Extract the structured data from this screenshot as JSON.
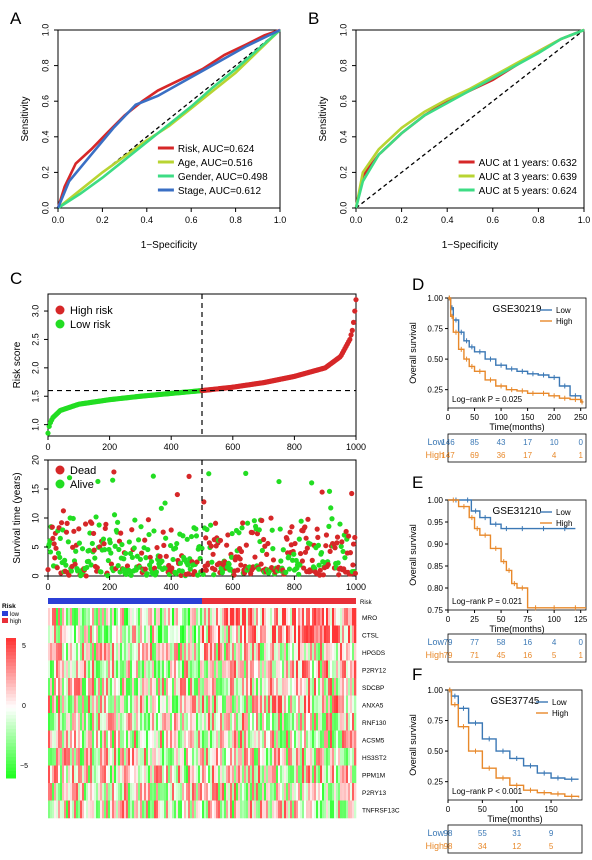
{
  "panels": {
    "A": "A",
    "B": "B",
    "C": "C",
    "D": "D",
    "E": "E",
    "F": "F"
  },
  "colors": {
    "red": "#d62728",
    "lime": "#b8d432",
    "green": "#3ddc84",
    "blue": "#3a6fc4",
    "brightgreen": "#22dd22",
    "orange": "#e8892b",
    "km_blue": "#3b78b5",
    "heat_red": "#e8303a",
    "heat_green": "#2ad430"
  },
  "chart_data": [
    {
      "id": "A",
      "type": "line",
      "xlabel": "1−Specificity",
      "ylabel": "Sensitivity",
      "xlim": [
        0,
        1
      ],
      "ylim": [
        0,
        1
      ],
      "xticks": [
        "0.0",
        "0.2",
        "0.4",
        "0.6",
        "0.8",
        "1.0"
      ],
      "yticks": [
        "0.0",
        "0.2",
        "0.4",
        "0.6",
        "0.8",
        "1.0"
      ],
      "legend_position": "bottom-right",
      "series": [
        {
          "name": "Risk, AUC=0.624",
          "color": "#d62728",
          "x": [
            0,
            0.03,
            0.08,
            0.15,
            0.22,
            0.3,
            0.38,
            0.45,
            0.55,
            0.65,
            0.75,
            0.85,
            0.93,
            1.0
          ],
          "y": [
            0,
            0.12,
            0.25,
            0.33,
            0.42,
            0.52,
            0.6,
            0.66,
            0.72,
            0.78,
            0.86,
            0.92,
            0.97,
            1.0
          ]
        },
        {
          "name": "Age, AUC=0.516",
          "color": "#b8d432",
          "x": [
            0,
            0.1,
            0.2,
            0.3,
            0.4,
            0.5,
            0.6,
            0.7,
            0.8,
            0.9,
            1.0
          ],
          "y": [
            0,
            0.1,
            0.2,
            0.29,
            0.38,
            0.46,
            0.56,
            0.66,
            0.76,
            0.88,
            1.0
          ]
        },
        {
          "name": "Gender, AUC=0.498",
          "color": "#3ddc84",
          "x": [
            0,
            0.1,
            0.2,
            0.3,
            0.4,
            0.5,
            0.6,
            0.7,
            0.8,
            0.9,
            1.0
          ],
          "y": [
            0,
            0.08,
            0.17,
            0.27,
            0.37,
            0.47,
            0.57,
            0.68,
            0.78,
            0.89,
            1.0
          ]
        },
        {
          "name": "Stage, AUC=0.612",
          "color": "#3a6fc4",
          "x": [
            0,
            0.05,
            0.15,
            0.25,
            0.35,
            0.45,
            0.55,
            0.65,
            0.75,
            0.85,
            1.0
          ],
          "y": [
            0,
            0.15,
            0.3,
            0.45,
            0.58,
            0.63,
            0.7,
            0.77,
            0.84,
            0.91,
            1.0
          ]
        }
      ]
    },
    {
      "id": "B",
      "type": "line",
      "xlabel": "1−Specificity",
      "ylabel": "Sensitivity",
      "xlim": [
        0,
        1
      ],
      "ylim": [
        0,
        1
      ],
      "xticks": [
        "0.0",
        "0.2",
        "0.4",
        "0.6",
        "0.8",
        "1.0"
      ],
      "yticks": [
        "0.0",
        "0.2",
        "0.4",
        "0.6",
        "0.8",
        "1.0"
      ],
      "legend_position": "bottom-right",
      "series": [
        {
          "name": "AUC at 1 years: 0.632",
          "color": "#d62728",
          "x": [
            0,
            0.03,
            0.1,
            0.2,
            0.3,
            0.4,
            0.5,
            0.6,
            0.7,
            0.8,
            0.9,
            1.0
          ],
          "y": [
            0,
            0.18,
            0.3,
            0.42,
            0.52,
            0.6,
            0.66,
            0.72,
            0.8,
            0.88,
            0.95,
            1.0
          ]
        },
        {
          "name": "AUC at 3 years: 0.639",
          "color": "#b8d432",
          "x": [
            0,
            0.03,
            0.1,
            0.2,
            0.3,
            0.4,
            0.5,
            0.6,
            0.7,
            0.8,
            0.9,
            1.0
          ],
          "y": [
            0,
            0.2,
            0.33,
            0.45,
            0.54,
            0.61,
            0.67,
            0.74,
            0.81,
            0.88,
            0.95,
            1.0
          ]
        },
        {
          "name": "AUC at 5 years: 0.624",
          "color": "#3ddc84",
          "x": [
            0,
            0.03,
            0.1,
            0.2,
            0.3,
            0.4,
            0.5,
            0.6,
            0.7,
            0.8,
            0.9,
            1.0
          ],
          "y": [
            0,
            0.15,
            0.3,
            0.42,
            0.52,
            0.59,
            0.66,
            0.73,
            0.8,
            0.87,
            0.95,
            1.0
          ]
        }
      ]
    },
    {
      "id": "C1",
      "type": "scatter",
      "ylabel": "Risk score",
      "xlim": [
        0,
        1000
      ],
      "ylim": [
        0.8,
        3.3
      ],
      "xticks": [
        "0",
        "200",
        "400",
        "600",
        "800",
        "1000"
      ],
      "yticks": [
        "1.0",
        "1.5",
        "2.0",
        "2.5",
        "3.0"
      ],
      "cutoff_x": 500,
      "cutoff_y": 1.6,
      "legend_position": "top-left",
      "series": [
        {
          "name": "High risk",
          "color": "#d62728"
        },
        {
          "name": "Low risk",
          "color": "#22dd22"
        }
      ],
      "curve": {
        "x": [
          0,
          5,
          15,
          40,
          100,
          200,
          300,
          400,
          480,
          500,
          600,
          700,
          800,
          900,
          950,
          980,
          990,
          1000
        ],
        "y": [
          0.85,
          1.0,
          1.12,
          1.25,
          1.36,
          1.44,
          1.5,
          1.55,
          1.59,
          1.6,
          1.66,
          1.74,
          1.85,
          2.0,
          2.2,
          2.5,
          2.7,
          3.2
        ]
      }
    },
    {
      "id": "C2",
      "type": "scatter",
      "ylabel": "Survival time (years)",
      "xlim": [
        0,
        1000
      ],
      "ylim": [
        0,
        20
      ],
      "xticks": [
        "0",
        "200",
        "400",
        "600",
        "800",
        "1000"
      ],
      "yticks": [
        "0",
        "5",
        "10",
        "15",
        "20"
      ],
      "cutoff_x": 500,
      "legend_position": "top-left",
      "series": [
        {
          "name": "Dead",
          "color": "#d62728"
        },
        {
          "name": "Alive",
          "color": "#22dd22"
        }
      ]
    },
    {
      "id": "C3",
      "type": "heatmap",
      "legend_title": "Risk",
      "legend_entries": [
        "low",
        "high"
      ],
      "annotation_label": "Risk",
      "color_scale_ticks": [
        "5",
        "0",
        "−5"
      ],
      "genes": [
        "MRO",
        "CTSL",
        "HPGDS",
        "P2RY12",
        "SDCBP",
        "ANXA5",
        "RNF130",
        "ACSM5",
        "HS3ST2",
        "PPM1M",
        "P2RY13",
        "TNFRSF13C"
      ]
    },
    {
      "id": "D",
      "type": "line",
      "title": "GSE30219",
      "ylabel": "Overall survival",
      "xlabel": "Time(months)",
      "xlim": [
        0,
        260
      ],
      "ylim": [
        0.1,
        1.0
      ],
      "xticks": [
        "0",
        "50",
        "100",
        "150",
        "200",
        "250"
      ],
      "yticks": [
        "0.25",
        "0.50",
        "0.75",
        "1.00"
      ],
      "annotation": "Log−rank P = 0.025",
      "legend_position": "top-right",
      "series": [
        {
          "name": "Low",
          "color": "#3b78b5",
          "x": [
            0,
            5,
            10,
            20,
            30,
            40,
            50,
            70,
            90,
            110,
            130,
            150,
            170,
            190,
            210,
            230,
            250,
            255
          ],
          "y": [
            1.0,
            0.92,
            0.82,
            0.72,
            0.65,
            0.6,
            0.56,
            0.5,
            0.45,
            0.42,
            0.4,
            0.38,
            0.37,
            0.35,
            0.28,
            0.2,
            0.15,
            0.15
          ]
        },
        {
          "name": "High",
          "color": "#e8892b",
          "x": [
            0,
            5,
            10,
            20,
            30,
            40,
            50,
            70,
            90,
            110,
            130,
            150,
            170,
            190,
            210,
            230,
            250,
            255
          ],
          "y": [
            1.0,
            0.85,
            0.72,
            0.58,
            0.5,
            0.44,
            0.4,
            0.33,
            0.28,
            0.25,
            0.24,
            0.22,
            0.22,
            0.2,
            0.18,
            0.17,
            0.15,
            0.15
          ]
        }
      ],
      "risk_table": {
        "times": [
          "0",
          "50",
          "100",
          "150",
          "200",
          "250"
        ],
        "rows": [
          {
            "name": "Low",
            "values": [
              "146",
              "85",
              "43",
              "17",
              "10",
              "0"
            ]
          },
          {
            "name": "High",
            "values": [
              "147",
              "69",
              "36",
              "17",
              "4",
              "1"
            ]
          }
        ]
      }
    },
    {
      "id": "E",
      "type": "line",
      "title": "GSE31210",
      "ylabel": "Overall survival",
      "xlabel": "Time(months)",
      "xlim": [
        0,
        130
      ],
      "ylim": [
        0.75,
        1.0
      ],
      "xticks": [
        "0",
        "25",
        "50",
        "75",
        "100",
        "125"
      ],
      "yticks": [
        "0.75",
        "0.80",
        "0.85",
        "0.90",
        "0.95",
        "1.00"
      ],
      "annotation": "Log−rank P = 0.021",
      "legend_position": "top-right",
      "series": [
        {
          "name": "Low",
          "color": "#3b78b5",
          "x": [
            0,
            15,
            22,
            30,
            40,
            50,
            60,
            80,
            100,
            120
          ],
          "y": [
            1.0,
            1.0,
            0.975,
            0.96,
            0.945,
            0.935,
            0.935,
            0.935,
            0.935,
            0.935
          ]
        },
        {
          "name": "High",
          "color": "#e8892b",
          "x": [
            0,
            10,
            20,
            25,
            30,
            40,
            50,
            55,
            60,
            65,
            75,
            90,
            110,
            130
          ],
          "y": [
            1.0,
            0.985,
            0.96,
            0.935,
            0.92,
            0.89,
            0.86,
            0.84,
            0.81,
            0.8,
            0.755,
            0.755,
            0.755,
            0.755
          ]
        }
      ],
      "risk_table": {
        "times": [
          "0",
          "25",
          "50",
          "75",
          "100",
          "125"
        ],
        "rows": [
          {
            "name": "Low",
            "values": [
              "79",
              "77",
              "58",
              "16",
              "4",
              "0"
            ]
          },
          {
            "name": "High",
            "values": [
              "79",
              "71",
              "45",
              "16",
              "5",
              "1"
            ]
          }
        ]
      }
    },
    {
      "id": "F",
      "type": "line",
      "title": "GSE37745",
      "ylabel": "Overall survival",
      "xlabel": "Time(months)",
      "xlim": [
        0,
        195
      ],
      "ylim": [
        0.1,
        1.0
      ],
      "xticks": [
        "0",
        "50",
        "100",
        "150"
      ],
      "yticks": [
        "0.25",
        "0.50",
        "0.75",
        "1.00"
      ],
      "annotation": "Log−rank P < 0.001",
      "legend_position": "top-right",
      "series": [
        {
          "name": "Low",
          "color": "#3b78b5",
          "x": [
            0,
            5,
            15,
            30,
            50,
            70,
            90,
            110,
            130,
            150,
            170,
            190
          ],
          "y": [
            1.0,
            0.95,
            0.85,
            0.73,
            0.6,
            0.5,
            0.44,
            0.38,
            0.32,
            0.28,
            0.27,
            0.27
          ]
        },
        {
          "name": "High",
          "color": "#e8892b",
          "x": [
            0,
            5,
            15,
            30,
            50,
            70,
            90,
            110,
            130,
            150,
            170,
            190
          ],
          "y": [
            1.0,
            0.88,
            0.7,
            0.5,
            0.36,
            0.28,
            0.22,
            0.18,
            0.16,
            0.15,
            0.13,
            0.12
          ]
        }
      ],
      "risk_table": {
        "times": [
          "0",
          "50",
          "100",
          "150"
        ],
        "rows": [
          {
            "name": "Low",
            "values": [
              "98",
              "55",
              "31",
              "9"
            ]
          },
          {
            "name": "High",
            "values": [
              "98",
              "34",
              "12",
              "5"
            ]
          }
        ]
      }
    }
  ]
}
